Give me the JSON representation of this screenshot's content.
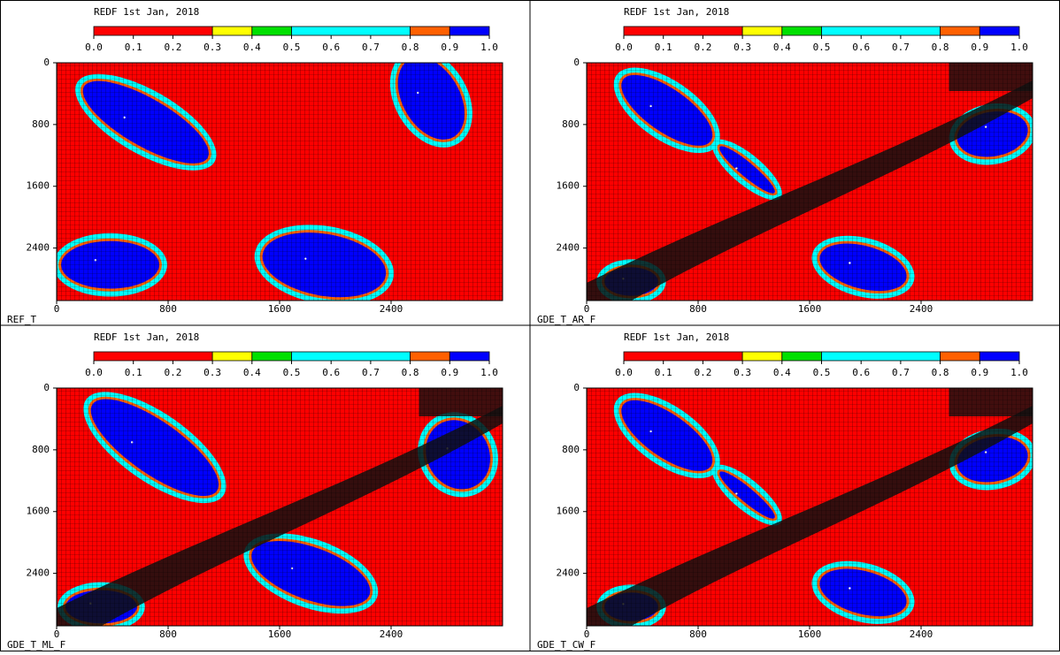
{
  "chart_data": [
    {
      "type": "heatmap",
      "title": "REDF 1st Jan, 2018",
      "label": "REF_T",
      "levels": [
        0,
        0.3,
        0.4,
        0.5,
        0.8,
        0.9,
        1
      ],
      "colors": [
        "#ff0000",
        "#ffff00",
        "#00e000",
        "#00ffff",
        "#ff6000",
        "#0000ff"
      ],
      "cticks": [
        {
          "value": 0,
          "label": "0.0"
        },
        0.1,
        0.2,
        0.3,
        0.4,
        0.5,
        0.6,
        0.7,
        0.8,
        0.9,
        {
          "value": 1,
          "label": "1.0"
        }
      ],
      "xlim": [
        0,
        3200
      ],
      "xticks": [
        0,
        800,
        1600,
        2400
      ],
      "ylim": [
        3080,
        0
      ],
      "yticks": [
        0,
        800,
        1600,
        2400
      ]
    },
    {
      "type": "heatmap",
      "title": "REDF 1st Jan, 2018",
      "label": "GDE_T_AR_F",
      "levels": [
        0,
        0.3,
        0.4,
        0.5,
        0.8,
        0.9,
        1
      ],
      "colors": [
        "#ff0000",
        "#ffff00",
        "#00e000",
        "#00ffff",
        "#ff6000",
        "#0000ff"
      ],
      "cticks": [
        {
          "value": 0,
          "label": "0.0"
        },
        0.1,
        0.2,
        0.3,
        0.4,
        0.5,
        0.6,
        0.7,
        0.8,
        0.9,
        {
          "value": 1,
          "label": "1.0"
        }
      ],
      "xlim": [
        0,
        3200
      ],
      "xticks": [
        0,
        800,
        1600,
        2400
      ],
      "ylim": [
        3080,
        0
      ],
      "yticks": [
        0,
        800,
        1600,
        2400
      ]
    },
    {
      "type": "heatmap",
      "title": "REDF 1st Jan, 2018",
      "label": "GDE_T_ML_F",
      "levels": [
        0,
        0.3,
        0.4,
        0.5,
        0.8,
        0.9,
        1
      ],
      "colors": [
        "#ff0000",
        "#ffff00",
        "#00e000",
        "#00ffff",
        "#ff6000",
        "#0000ff"
      ],
      "cticks": [
        {
          "value": 0,
          "label": "0.0"
        },
        0.1,
        0.2,
        0.3,
        0.4,
        0.5,
        0.6,
        0.7,
        0.8,
        0.9,
        {
          "value": 1,
          "label": "1.0"
        }
      ],
      "xlim": [
        0,
        3200
      ],
      "xticks": [
        0,
        800,
        1600,
        2400
      ],
      "ylim": [
        3080,
        0
      ],
      "yticks": [
        0,
        800,
        1600,
        2400
      ]
    },
    {
      "type": "heatmap",
      "title": "REDF 1st Jan, 2018",
      "label": "GDE_T_CW_F",
      "levels": [
        0,
        0.3,
        0.4,
        0.5,
        0.8,
        0.9,
        1
      ],
      "colors": [
        "#ff0000",
        "#ffff00",
        "#00e000",
        "#00ffff",
        "#ff6000",
        "#0000ff"
      ],
      "cticks": [
        {
          "value": 0,
          "label": "0.0"
        },
        0.1,
        0.2,
        0.3,
        0.4,
        0.5,
        0.6,
        0.7,
        0.8,
        0.9,
        {
          "value": 1,
          "label": "1.0"
        }
      ],
      "xlim": [
        0,
        3200
      ],
      "xticks": [
        0,
        800,
        1600,
        2400
      ],
      "ylim": [
        3080,
        0
      ],
      "yticks": [
        0,
        800,
        1600,
        2400
      ]
    }
  ]
}
